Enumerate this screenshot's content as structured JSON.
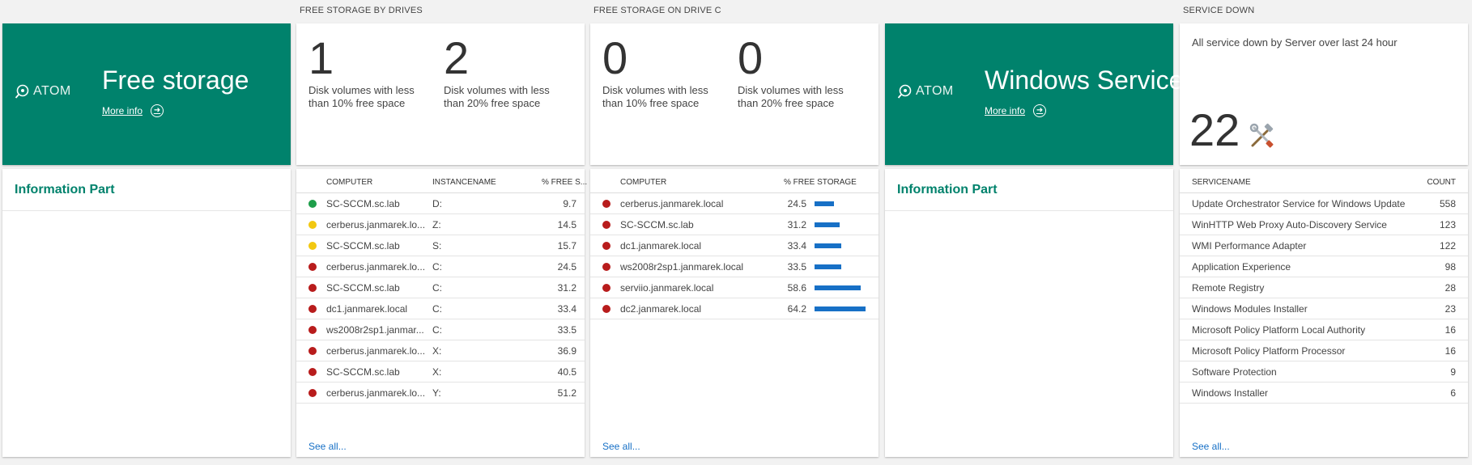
{
  "tiles": {
    "free_storage": {
      "logo_text": "ATOM",
      "title": "Free storage",
      "more_info": "More info",
      "info_part": "Information Part"
    },
    "drives": {
      "section_title": "FREE STORAGE BY DRIVES",
      "stat1": {
        "value": "1",
        "desc": "Disk volumes with less than 10% free space"
      },
      "stat2": {
        "value": "2",
        "desc": "Disk volumes with less than 20% free space"
      },
      "headers": {
        "computer": "COMPUTER",
        "instance": "INSTANCENAME",
        "free": "% FREE S..."
      },
      "rows": [
        {
          "status": "green",
          "computer": "SC-SCCM.sc.lab",
          "instance": "D:",
          "free": "9.7"
        },
        {
          "status": "yellow",
          "computer": "cerberus.janmarek.lo...",
          "instance": "Z:",
          "free": "14.5"
        },
        {
          "status": "yellow",
          "computer": "SC-SCCM.sc.lab",
          "instance": "S:",
          "free": "15.7"
        },
        {
          "status": "red",
          "computer": "cerberus.janmarek.lo...",
          "instance": "C:",
          "free": "24.5"
        },
        {
          "status": "red",
          "computer": "SC-SCCM.sc.lab",
          "instance": "C:",
          "free": "31.2"
        },
        {
          "status": "red",
          "computer": "dc1.janmarek.local",
          "instance": "C:",
          "free": "33.4"
        },
        {
          "status": "red",
          "computer": "ws2008r2sp1.janmar...",
          "instance": "C:",
          "free": "33.5"
        },
        {
          "status": "red",
          "computer": "cerberus.janmarek.lo...",
          "instance": "X:",
          "free": "36.9"
        },
        {
          "status": "red",
          "computer": "SC-SCCM.sc.lab",
          "instance": "X:",
          "free": "40.5"
        },
        {
          "status": "red",
          "computer": "cerberus.janmarek.lo...",
          "instance": "Y:",
          "free": "51.2"
        }
      ],
      "see_all": "See all..."
    },
    "drive_c": {
      "section_title": "FREE STORAGE ON DRIVE C",
      "stat1": {
        "value": "0",
        "desc": "Disk volumes with less than 10% free space"
      },
      "stat2": {
        "value": "0",
        "desc": "Disk volumes with less than 20% free space"
      },
      "headers": {
        "computer": "COMPUTER",
        "free": "% FREE STORAGE"
      },
      "rows": [
        {
          "status": "red",
          "computer": "cerberus.janmarek.local",
          "free": "24.5",
          "pct": 24.5
        },
        {
          "status": "red",
          "computer": "SC-SCCM.sc.lab",
          "free": "31.2",
          "pct": 31.2
        },
        {
          "status": "red",
          "computer": "dc1.janmarek.local",
          "free": "33.4",
          "pct": 33.4
        },
        {
          "status": "red",
          "computer": "ws2008r2sp1.janmarek.local",
          "free": "33.5",
          "pct": 33.5
        },
        {
          "status": "red",
          "computer": "serviio.janmarek.local",
          "free": "58.6",
          "pct": 58.6
        },
        {
          "status": "red",
          "computer": "dc2.janmarek.local",
          "free": "64.2",
          "pct": 64.2
        }
      ],
      "see_all": "See all..."
    },
    "windows_service": {
      "logo_text": "ATOM",
      "title": "Windows Service",
      "more_info": "More info",
      "info_part": "Information Part"
    },
    "service_down": {
      "section_title": "SERVICE DOWN",
      "subtitle": "All service down by Server over last 24 hour",
      "value": "22",
      "headers": {
        "name": "SERVICENAME",
        "count": "COUNT"
      },
      "rows": [
        {
          "name": "Update Orchestrator Service for Windows Update",
          "count": "558"
        },
        {
          "name": "WinHTTP Web Proxy Auto-Discovery Service",
          "count": "123"
        },
        {
          "name": "WMI Performance Adapter",
          "count": "122"
        },
        {
          "name": "Application Experience",
          "count": "98"
        },
        {
          "name": "Remote Registry",
          "count": "28"
        },
        {
          "name": "Windows Modules Installer",
          "count": "23"
        },
        {
          "name": "Microsoft Policy Platform Local Authority",
          "count": "16"
        },
        {
          "name": "Microsoft Policy Platform Processor",
          "count": "16"
        },
        {
          "name": "Software Protection",
          "count": "9"
        },
        {
          "name": "Windows Installer",
          "count": "6"
        }
      ],
      "see_all": "See all..."
    }
  },
  "colors": {
    "brand": "#00826c",
    "link": "#1770c6",
    "bar": "#1770c6",
    "status_green": "#1e9e4a",
    "status_yellow": "#f2c811",
    "status_red": "#b81c1c"
  },
  "icons": {
    "logo": "atom-logo-icon",
    "more_info": "arrow-right-circle-icon",
    "service": "tools-icon"
  }
}
